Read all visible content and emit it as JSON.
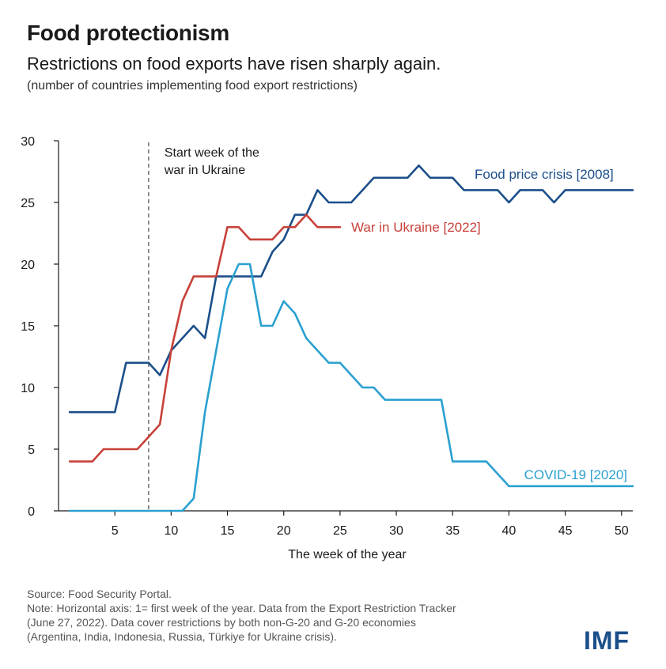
{
  "header": {
    "title": "Food protectionism",
    "subtitle": "Restrictions on food exports have risen sharply again.",
    "note": "(number of countries implementing food export restrictions)"
  },
  "footer": {
    "source_lines": [
      "Source: Food Security Portal.",
      "Note: Horizontal axis: 1= first week of the year. Data from the Export Restriction Tracker",
      "(June 27, 2022). Data cover restrictions by both non-G-20 and G-20 economies",
      "(Argentina, India, Indonesia, Russia, Türkiye for Ukraine crisis)."
    ],
    "logo": "IMF"
  },
  "chart_data": {
    "type": "line",
    "xlabel": "The week of the year",
    "ylabel": "",
    "xlim": [
      0,
      51
    ],
    "ylim": [
      0,
      30
    ],
    "x_ticks": [
      5,
      10,
      15,
      20,
      25,
      30,
      35,
      40,
      45,
      50
    ],
    "y_ticks": [
      0,
      5,
      10,
      15,
      20,
      25,
      30
    ],
    "grid": false,
    "annotation": {
      "x": 8,
      "label_lines": [
        "Start week of the",
        "war in Ukraine"
      ]
    },
    "series": [
      {
        "name": "Food price crisis [2008]",
        "color": "#1b4f8a",
        "points": [
          [
            1,
            8
          ],
          [
            2,
            8
          ],
          [
            3,
            8
          ],
          [
            4,
            8
          ],
          [
            5,
            8
          ],
          [
            6,
            12
          ],
          [
            7,
            12
          ],
          [
            8,
            12
          ],
          [
            9,
            11
          ],
          [
            10,
            13
          ],
          [
            11,
            14
          ],
          [
            12,
            15
          ],
          [
            13,
            14
          ],
          [
            14,
            19
          ],
          [
            15,
            19
          ],
          [
            16,
            19
          ],
          [
            17,
            19
          ],
          [
            18,
            19
          ],
          [
            19,
            21
          ],
          [
            20,
            22
          ],
          [
            21,
            24
          ],
          [
            22,
            24
          ],
          [
            23,
            26
          ],
          [
            24,
            25
          ],
          [
            25,
            25
          ],
          [
            26,
            25
          ],
          [
            27,
            26
          ],
          [
            28,
            27
          ],
          [
            29,
            27
          ],
          [
            30,
            27
          ],
          [
            31,
            27
          ],
          [
            32,
            28
          ],
          [
            33,
            27
          ],
          [
            34,
            27
          ],
          [
            35,
            27
          ],
          [
            36,
            26
          ],
          [
            37,
            26
          ],
          [
            38,
            26
          ],
          [
            39,
            26
          ],
          [
            40,
            25
          ],
          [
            41,
            26
          ],
          [
            42,
            26
          ],
          [
            43,
            26
          ],
          [
            44,
            25
          ],
          [
            45,
            26
          ],
          [
            46,
            26
          ],
          [
            47,
            26
          ],
          [
            48,
            26
          ],
          [
            49,
            26
          ],
          [
            50,
            26
          ],
          [
            51,
            26
          ]
        ]
      },
      {
        "name": "War in Ukraine [2022]",
        "color": "#c8413a",
        "points": [
          [
            1,
            4
          ],
          [
            2,
            4
          ],
          [
            3,
            4
          ],
          [
            4,
            5
          ],
          [
            5,
            5
          ],
          [
            6,
            5
          ],
          [
            7,
            5
          ],
          [
            8,
            6
          ],
          [
            9,
            7
          ],
          [
            10,
            13
          ],
          [
            11,
            17
          ],
          [
            12,
            19
          ],
          [
            13,
            19
          ],
          [
            14,
            19
          ],
          [
            15,
            23
          ],
          [
            16,
            23
          ],
          [
            17,
            22
          ],
          [
            18,
            22
          ],
          [
            19,
            22
          ],
          [
            20,
            23
          ],
          [
            21,
            23
          ],
          [
            22,
            24
          ],
          [
            23,
            23
          ],
          [
            24,
            23
          ],
          [
            25,
            23
          ]
        ]
      },
      {
        "name": "COVID-19 [2020]",
        "color": "#2aa0d0",
        "points": [
          [
            1,
            0
          ],
          [
            2,
            0
          ],
          [
            3,
            0
          ],
          [
            4,
            0
          ],
          [
            5,
            0
          ],
          [
            6,
            0
          ],
          [
            7,
            0
          ],
          [
            8,
            0
          ],
          [
            9,
            0
          ],
          [
            10,
            0
          ],
          [
            11,
            0
          ],
          [
            12,
            1
          ],
          [
            13,
            8
          ],
          [
            14,
            13
          ],
          [
            15,
            18
          ],
          [
            16,
            20
          ],
          [
            17,
            20
          ],
          [
            18,
            15
          ],
          [
            19,
            15
          ],
          [
            20,
            17
          ],
          [
            21,
            16
          ],
          [
            22,
            14
          ],
          [
            23,
            13
          ],
          [
            24,
            12
          ],
          [
            25,
            12
          ],
          [
            26,
            11
          ],
          [
            27,
            10
          ],
          [
            28,
            10
          ],
          [
            29,
            9
          ],
          [
            30,
            9
          ],
          [
            31,
            9
          ],
          [
            32,
            9
          ],
          [
            33,
            9
          ],
          [
            34,
            9
          ],
          [
            35,
            4
          ],
          [
            36,
            4
          ],
          [
            37,
            4
          ],
          [
            38,
            4
          ],
          [
            39,
            3
          ],
          [
            40,
            2
          ],
          [
            41,
            2
          ],
          [
            42,
            2
          ],
          [
            43,
            2
          ],
          [
            44,
            2
          ],
          [
            45,
            2
          ],
          [
            46,
            2
          ],
          [
            47,
            2
          ],
          [
            48,
            2
          ],
          [
            49,
            2
          ],
          [
            50,
            2
          ],
          [
            51,
            2
          ]
        ]
      }
    ]
  }
}
